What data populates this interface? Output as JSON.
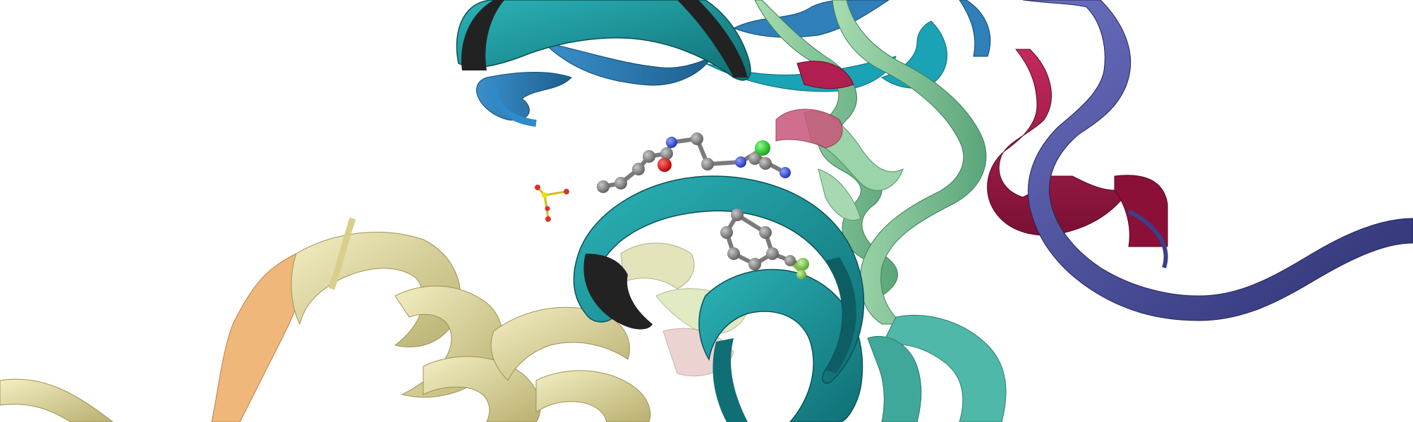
{
  "scene": {
    "description_key": "protein-ligand-render",
    "colors": {
      "background": "#ffffff",
      "helix_teal": "#1e9aa0",
      "helix_teal_dark": "#0f6f74",
      "helix_inner": "#2b2b2b",
      "sheet_blue": "#2f7fb8",
      "sheet_cyan": "#19a3b5",
      "sheet_mint": "#8fcf9f",
      "sheet_mint_dark": "#5aa57a",
      "strand_indigo": "#4b4f9e",
      "strand_indigo_dark": "#2e3173",
      "loop_crimson": "#b01f4f",
      "loop_crimson_dark": "#7a0f34",
      "loop_pink": "#d45a7a",
      "ribbon_khaki": "#e8e2a8",
      "ribbon_khaki_dark": "#b9b070",
      "ribbon_orange": "#efb77a",
      "ligand_carbon": "#8a8a8a",
      "ligand_nitrogen": "#3050f8",
      "ligand_oxygen": "#ff0d0d",
      "ligand_chlorine": "#1ff01f",
      "ligand_fluorine": "#90e050",
      "sulfate_sulfur": "#e6e600",
      "sulfate_oxygen": "#e03030"
    }
  }
}
